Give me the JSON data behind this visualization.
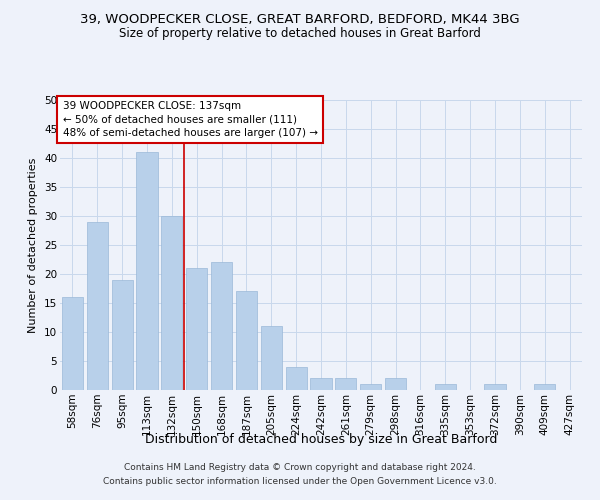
{
  "title1": "39, WOODPECKER CLOSE, GREAT BARFORD, BEDFORD, MK44 3BG",
  "title2": "Size of property relative to detached houses in Great Barford",
  "xlabel": "Distribution of detached houses by size in Great Barford",
  "ylabel": "Number of detached properties",
  "categories": [
    "58sqm",
    "76sqm",
    "95sqm",
    "113sqm",
    "132sqm",
    "150sqm",
    "168sqm",
    "187sqm",
    "205sqm",
    "224sqm",
    "242sqm",
    "261sqm",
    "279sqm",
    "298sqm",
    "316sqm",
    "335sqm",
    "353sqm",
    "372sqm",
    "390sqm",
    "409sqm",
    "427sqm"
  ],
  "values": [
    16,
    29,
    19,
    41,
    30,
    21,
    22,
    17,
    11,
    4,
    2,
    2,
    1,
    2,
    0,
    1,
    0,
    1,
    0,
    1,
    0
  ],
  "bar_color": "#b8d0ea",
  "bar_edge_color": "#9ab8d8",
  "grid_color": "#c8d8ec",
  "vline_x": 4.5,
  "vline_color": "#cc0000",
  "annotation_text": "39 WOODPECKER CLOSE: 137sqm\n← 50% of detached houses are smaller (111)\n48% of semi-detached houses are larger (107) →",
  "annotation_box_color": "white",
  "annotation_box_edgecolor": "#cc0000",
  "ylim": [
    0,
    50
  ],
  "yticks": [
    0,
    5,
    10,
    15,
    20,
    25,
    30,
    35,
    40,
    45,
    50
  ],
  "footer1": "Contains HM Land Registry data © Crown copyright and database right 2024.",
  "footer2": "Contains public sector information licensed under the Open Government Licence v3.0.",
  "bg_color": "#eef2fa",
  "title1_fontsize": 9.5,
  "title2_fontsize": 8.5,
  "xlabel_fontsize": 9,
  "ylabel_fontsize": 8,
  "tick_fontsize": 7.5,
  "annot_fontsize": 7.5,
  "footer_fontsize": 6.5
}
